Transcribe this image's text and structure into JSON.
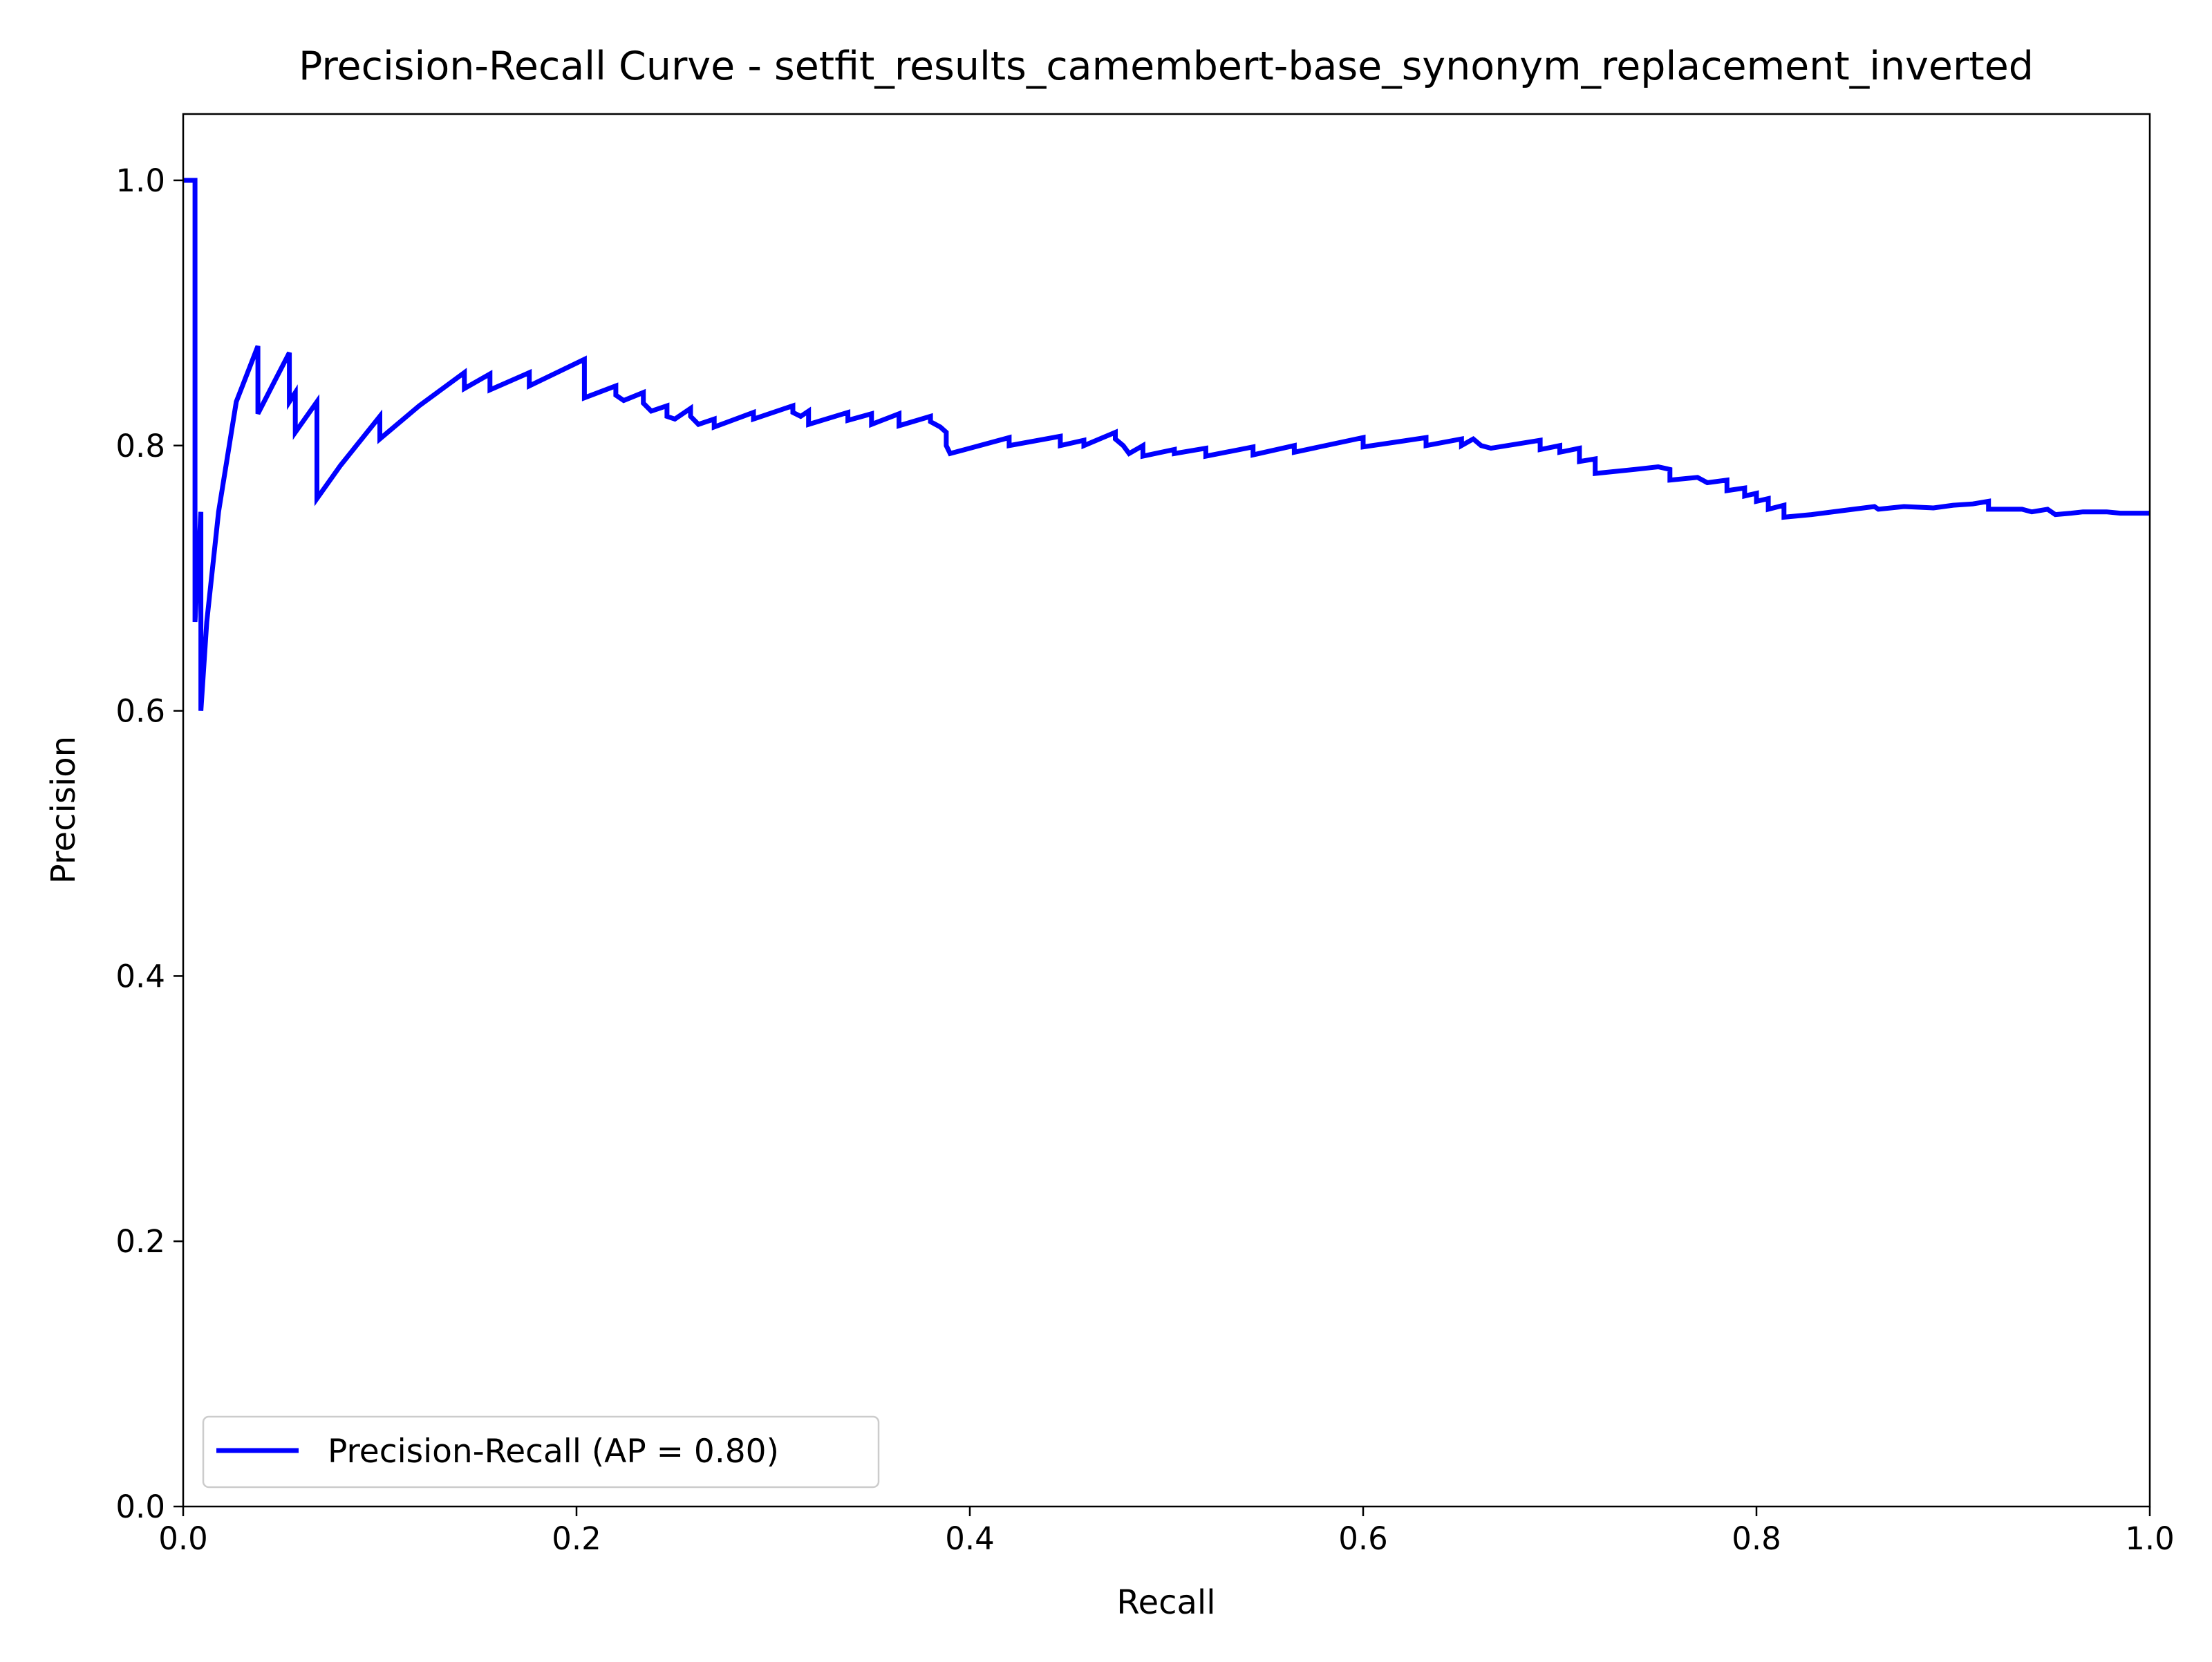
{
  "chart_data": {
    "type": "line",
    "title": "Precision-Recall Curve - setfit_results_camembert-base_synonym_replacement_inverted",
    "xlabel": "Recall",
    "ylabel": "Precision",
    "xlim": [
      0.0,
      1.0
    ],
    "ylim": [
      0.0,
      1.05
    ],
    "x_ticks": [
      "0.0",
      "0.2",
      "0.4",
      "0.6",
      "0.8",
      "1.0"
    ],
    "y_ticks": [
      "0.0",
      "0.2",
      "0.4",
      "0.6",
      "0.8",
      "1.0"
    ],
    "grid": false,
    "legend": {
      "position": "lower-left",
      "entries": [
        "Precision-Recall (AP = 0.80)"
      ]
    },
    "series": [
      {
        "name": "Precision-Recall (AP = 0.80)",
        "color": "#0000ff",
        "points": [
          [
            0.0,
            1.0
          ],
          [
            0.006,
            1.0
          ],
          [
            0.006,
            0.667
          ],
          [
            0.009,
            0.75
          ],
          [
            0.009,
            0.6
          ],
          [
            0.012,
            0.667
          ],
          [
            0.018,
            0.75
          ],
          [
            0.027,
            0.833
          ],
          [
            0.038,
            0.875
          ],
          [
            0.038,
            0.824
          ],
          [
            0.047,
            0.85
          ],
          [
            0.054,
            0.87
          ],
          [
            0.054,
            0.833
          ],
          [
            0.057,
            0.84
          ],
          [
            0.057,
            0.81
          ],
          [
            0.068,
            0.833
          ],
          [
            0.068,
            0.76
          ],
          [
            0.08,
            0.785
          ],
          [
            0.1,
            0.822
          ],
          [
            0.1,
            0.805
          ],
          [
            0.12,
            0.83
          ],
          [
            0.143,
            0.855
          ],
          [
            0.143,
            0.843
          ],
          [
            0.156,
            0.854
          ],
          [
            0.156,
            0.842
          ],
          [
            0.176,
            0.855
          ],
          [
            0.176,
            0.845
          ],
          [
            0.204,
            0.865
          ],
          [
            0.204,
            0.836
          ],
          [
            0.22,
            0.845
          ],
          [
            0.22,
            0.838
          ],
          [
            0.224,
            0.834
          ],
          [
            0.234,
            0.84
          ],
          [
            0.234,
            0.832
          ],
          [
            0.238,
            0.826
          ],
          [
            0.246,
            0.83
          ],
          [
            0.246,
            0.822
          ],
          [
            0.25,
            0.82
          ],
          [
            0.258,
            0.828
          ],
          [
            0.258,
            0.822
          ],
          [
            0.262,
            0.816
          ],
          [
            0.27,
            0.82
          ],
          [
            0.27,
            0.814
          ],
          [
            0.29,
            0.825
          ],
          [
            0.29,
            0.82
          ],
          [
            0.31,
            0.83
          ],
          [
            0.31,
            0.825
          ],
          [
            0.314,
            0.822
          ],
          [
            0.318,
            0.826
          ],
          [
            0.318,
            0.816
          ],
          [
            0.338,
            0.825
          ],
          [
            0.338,
            0.819
          ],
          [
            0.35,
            0.824
          ],
          [
            0.35,
            0.816
          ],
          [
            0.364,
            0.824
          ],
          [
            0.364,
            0.815
          ],
          [
            0.38,
            0.822
          ],
          [
            0.38,
            0.818
          ],
          [
            0.385,
            0.814
          ],
          [
            0.388,
            0.81
          ],
          [
            0.388,
            0.8
          ],
          [
            0.39,
            0.794
          ],
          [
            0.42,
            0.806
          ],
          [
            0.42,
            0.8
          ],
          [
            0.446,
            0.807
          ],
          [
            0.446,
            0.8
          ],
          [
            0.458,
            0.804
          ],
          [
            0.458,
            0.8
          ],
          [
            0.474,
            0.81
          ],
          [
            0.474,
            0.805
          ],
          [
            0.478,
            0.8
          ],
          [
            0.481,
            0.794
          ],
          [
            0.488,
            0.8
          ],
          [
            0.488,
            0.792
          ],
          [
            0.504,
            0.797
          ],
          [
            0.504,
            0.794
          ],
          [
            0.52,
            0.798
          ],
          [
            0.52,
            0.792
          ],
          [
            0.544,
            0.799
          ],
          [
            0.544,
            0.793
          ],
          [
            0.565,
            0.8
          ],
          [
            0.565,
            0.795
          ],
          [
            0.6,
            0.806
          ],
          [
            0.6,
            0.799
          ],
          [
            0.632,
            0.806
          ],
          [
            0.632,
            0.8
          ],
          [
            0.65,
            0.805
          ],
          [
            0.65,
            0.8
          ],
          [
            0.656,
            0.805
          ],
          [
            0.66,
            0.8
          ],
          [
            0.665,
            0.798
          ],
          [
            0.69,
            0.804
          ],
          [
            0.69,
            0.797
          ],
          [
            0.7,
            0.8
          ],
          [
            0.7,
            0.795
          ],
          [
            0.71,
            0.798
          ],
          [
            0.71,
            0.788
          ],
          [
            0.718,
            0.79
          ],
          [
            0.718,
            0.779
          ],
          [
            0.738,
            0.782
          ],
          [
            0.75,
            0.784
          ],
          [
            0.756,
            0.782
          ],
          [
            0.756,
            0.774
          ],
          [
            0.77,
            0.776
          ],
          [
            0.775,
            0.772
          ],
          [
            0.785,
            0.774
          ],
          [
            0.785,
            0.766
          ],
          [
            0.794,
            0.768
          ],
          [
            0.794,
            0.762
          ],
          [
            0.8,
            0.764
          ],
          [
            0.8,
            0.758
          ],
          [
            0.806,
            0.76
          ],
          [
            0.806,
            0.752
          ],
          [
            0.814,
            0.755
          ],
          [
            0.814,
            0.746
          ],
          [
            0.828,
            0.748
          ],
          [
            0.86,
            0.754
          ],
          [
            0.862,
            0.752
          ],
          [
            0.875,
            0.754
          ],
          [
            0.89,
            0.753
          ],
          [
            0.9,
            0.755
          ],
          [
            0.91,
            0.756
          ],
          [
            0.918,
            0.758
          ],
          [
            0.918,
            0.752
          ],
          [
            0.935,
            0.752
          ],
          [
            0.94,
            0.75
          ],
          [
            0.948,
            0.752
          ],
          [
            0.952,
            0.748
          ],
          [
            0.96,
            0.749
          ],
          [
            0.966,
            0.75
          ],
          [
            0.978,
            0.75
          ],
          [
            0.985,
            0.749
          ],
          [
            1.0,
            0.749
          ]
        ]
      }
    ]
  }
}
